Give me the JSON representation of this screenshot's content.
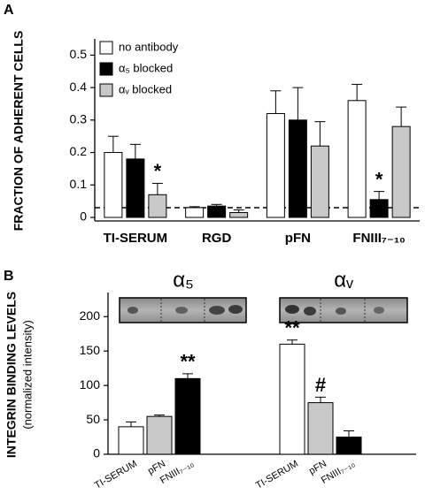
{
  "chart_data": [
    {
      "type": "bar",
      "panel": "A",
      "ylabel": "FRACTION OF ADHERENT CELLS",
      "categories": [
        "TI-SERUM",
        "RGD",
        "pFN",
        "FNIII₇₋₁₀"
      ],
      "series": [
        {
          "name": "no antibody",
          "color": "#ffffff",
          "values": [
            0.2,
            0.03,
            0.32,
            0.36
          ],
          "errors": [
            0.05,
            0.003,
            0.07,
            0.05
          ]
        },
        {
          "name": "α₅ blocked",
          "color": "#000000",
          "values": [
            0.18,
            0.035,
            0.3,
            0.055
          ],
          "errors": [
            0.045,
            0.005,
            0.1,
            0.025
          ]
        },
        {
          "name": "αᵥ blocked",
          "color": "#c8c8c8",
          "values": [
            0.07,
            0.015,
            0.22,
            0.28
          ],
          "errors": [
            0.035,
            0.008,
            0.075,
            0.06
          ]
        }
      ],
      "reference_line": 0.03,
      "annotations": [
        {
          "text": "*",
          "series": 2,
          "category": 0
        },
        {
          "text": "*",
          "series": 1,
          "category": 3
        }
      ],
      "ylim": [
        0,
        0.55
      ],
      "yticks": [
        0,
        0.1,
        0.2,
        0.3,
        0.4,
        0.5
      ]
    },
    {
      "type": "bar",
      "panel": "B",
      "ylabel": "INTEGRIN BINDING LEVELS",
      "ylabel_sub": "(normalized intensity)",
      "groups": [
        "α₅",
        "αᵥ"
      ],
      "categories": [
        "TI-SERUM",
        "pFN",
        "FNIII₇₋₁₀",
        "TI-SERUM",
        "pFN",
        "FNIII₇₋₁₀"
      ],
      "series": [
        {
          "colors": [
            "#ffffff",
            "#c8c8c8",
            "#000000",
            "#ffffff",
            "#c8c8c8",
            "#000000"
          ],
          "values": [
            40,
            55,
            110,
            160,
            75,
            25
          ],
          "errors": [
            7,
            2,
            7,
            6,
            8,
            9
          ]
        }
      ],
      "annotations": [
        {
          "text": "**",
          "series": 0,
          "category": 2
        },
        {
          "text": "**",
          "series": 0,
          "category": 3
        },
        {
          "text": "#",
          "series": 0,
          "category": 4
        }
      ],
      "ylim": [
        0,
        235
      ],
      "yticks": [
        0,
        50,
        100,
        150,
        200
      ]
    }
  ]
}
